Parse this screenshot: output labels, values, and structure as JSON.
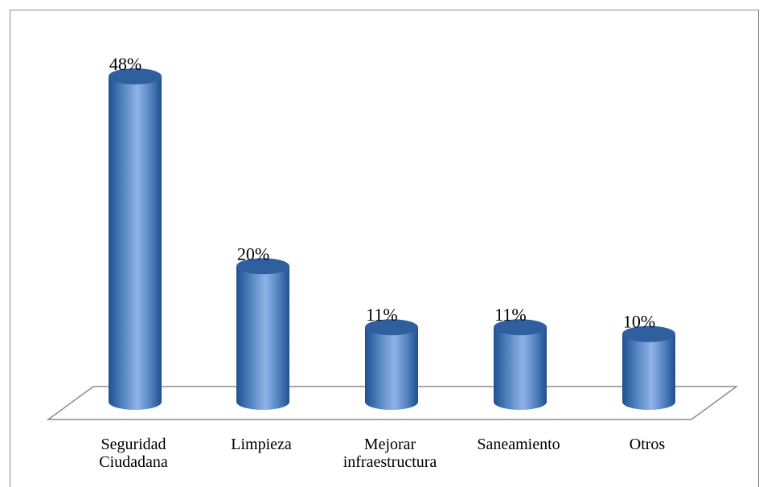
{
  "chart_data": {
    "type": "bar",
    "style": "3d-cylinder",
    "categories": [
      [
        "Seguridad",
        "Ciudadana"
      ],
      [
        "Limpieza"
      ],
      [
        "Mejorar",
        "infraestructura"
      ],
      [
        "Saneamiento"
      ],
      [
        "Otros"
      ]
    ],
    "values": [
      48,
      20,
      11,
      11,
      10
    ],
    "value_labels": [
      "48%",
      "20%",
      "11%",
      "11%",
      "10%"
    ],
    "unit": "%",
    "ylim": [
      0,
      48
    ],
    "grid": false,
    "legend": "none",
    "colors": {
      "bar_dark": "#1f4f8f",
      "bar_mid": "#4f81bd",
      "bar_light": "#8fb3e8",
      "bar_top": "#2f5f9f",
      "floor_stroke": "#8c8c8c",
      "frame_stroke": "#8c8c8c"
    }
  }
}
